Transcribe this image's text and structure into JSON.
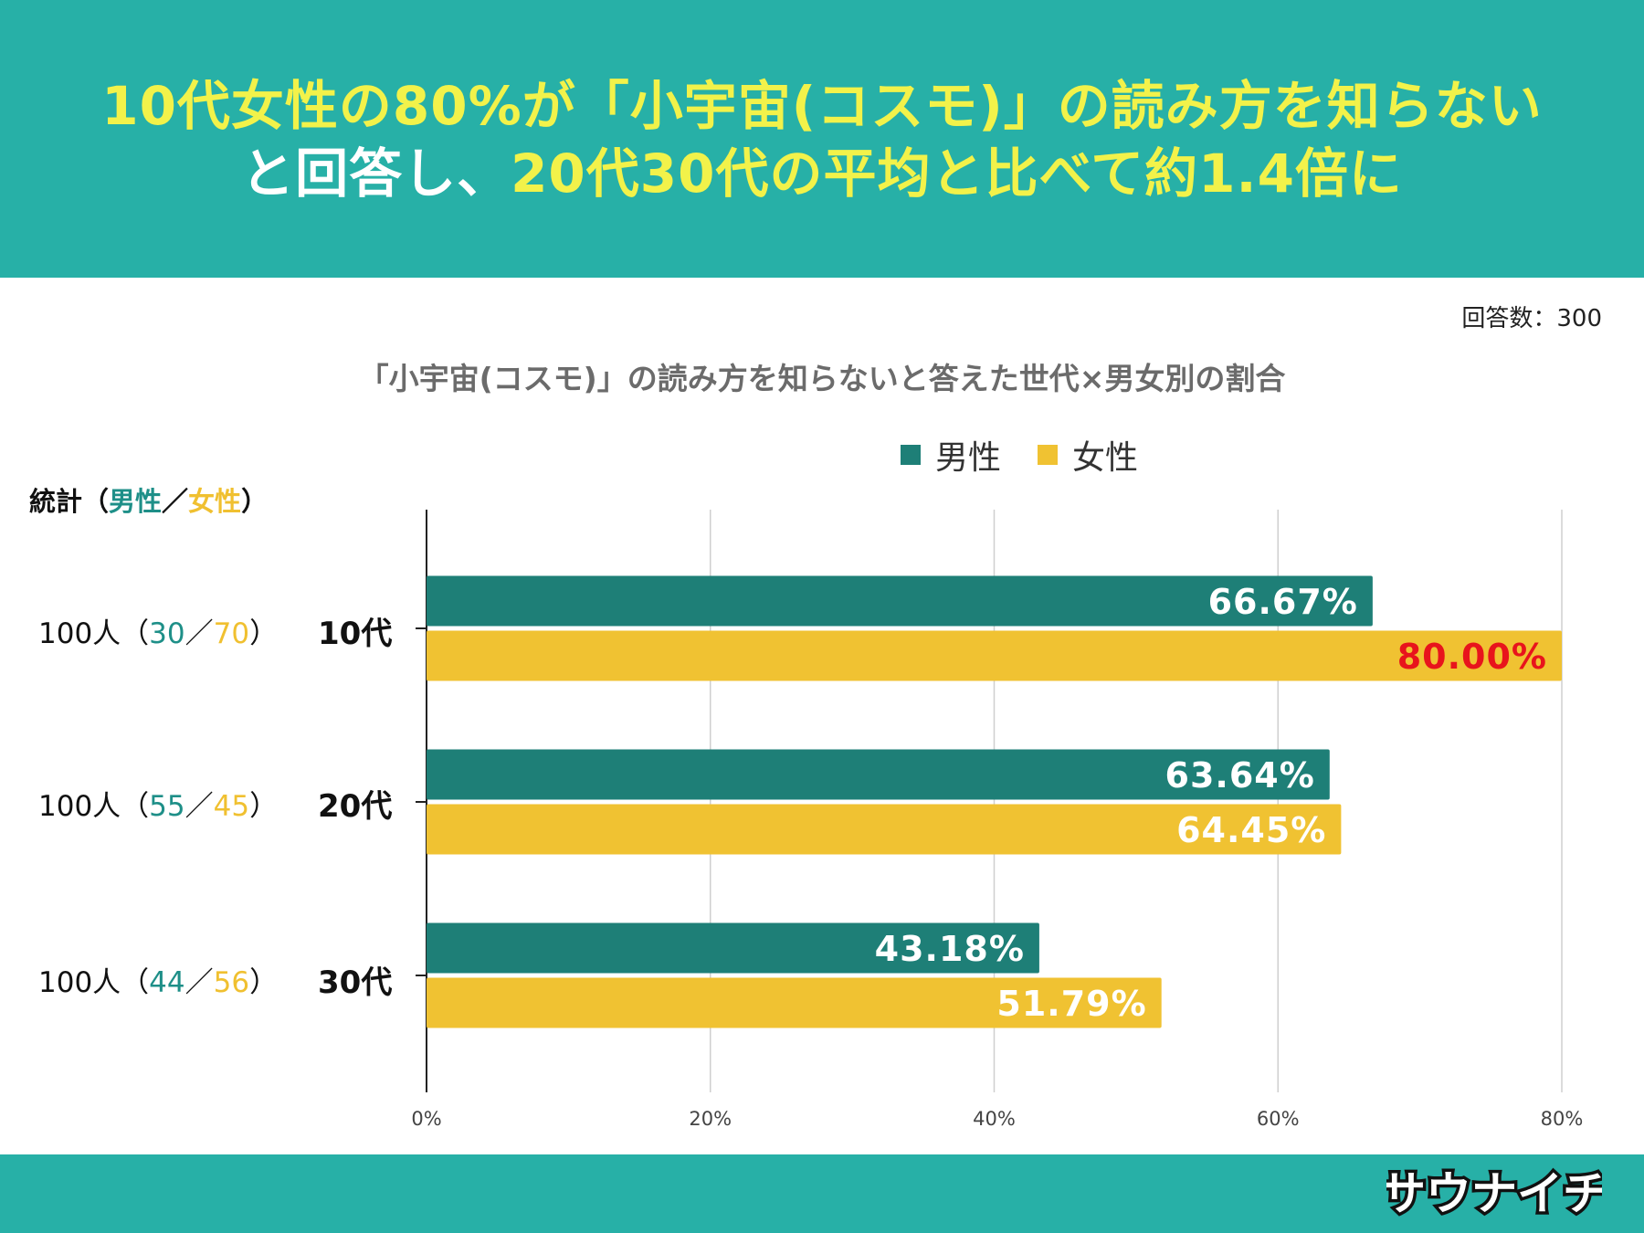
{
  "header": {
    "line1": "10代女性の80%が「小宇宙(コスモ)」の読み方を知らない",
    "line2_part1": "と回答し、",
    "line2_part2": "20代30代の平均と比べて約1.4倍に"
  },
  "respondents": "回答数：300",
  "stats_header": {
    "prefix": "統計（",
    "male": "男性",
    "sep": "／",
    "female": "女性",
    "suffix": "）"
  },
  "rows": [
    {
      "total": "100人（",
      "male": "30",
      "sep": "／",
      "female": "70",
      "end": "）"
    },
    {
      "total": "100人（",
      "male": "55",
      "sep": "／",
      "female": "45",
      "end": "）"
    },
    {
      "total": "100人（",
      "male": "44",
      "sep": "／",
      "female": "56",
      "end": "）"
    }
  ],
  "colors": {
    "header_bg": "#27b0a7",
    "headline_yellow": "#f2f24a",
    "male": "#1e7f77",
    "female": "#f0c232",
    "highlight_label": "#e8141c"
  },
  "chart_data": {
    "type": "bar",
    "orientation": "horizontal",
    "title": "「小宇宙(コスモ)」の読み方を知らないと答えた世代×男女別の割合",
    "categories": [
      "10代",
      "20代",
      "30代"
    ],
    "series": [
      {
        "name": "男性",
        "values": [
          66.67,
          63.64,
          43.18
        ],
        "labels": [
          "66.67%",
          "63.64%",
          "43.18%"
        ]
      },
      {
        "name": "女性",
        "values": [
          80.0,
          64.45,
          51.79
        ],
        "labels": [
          "80.00%",
          "64.45%",
          "51.79%"
        ]
      }
    ],
    "xlim": [
      0,
      80
    ],
    "xticks": [
      0,
      20,
      40,
      60,
      80
    ],
    "xtick_labels": [
      "0%",
      "20%",
      "40%",
      "60%",
      "80%"
    ],
    "grid": true,
    "legend": "top"
  },
  "logo_text": "サウナイチ"
}
